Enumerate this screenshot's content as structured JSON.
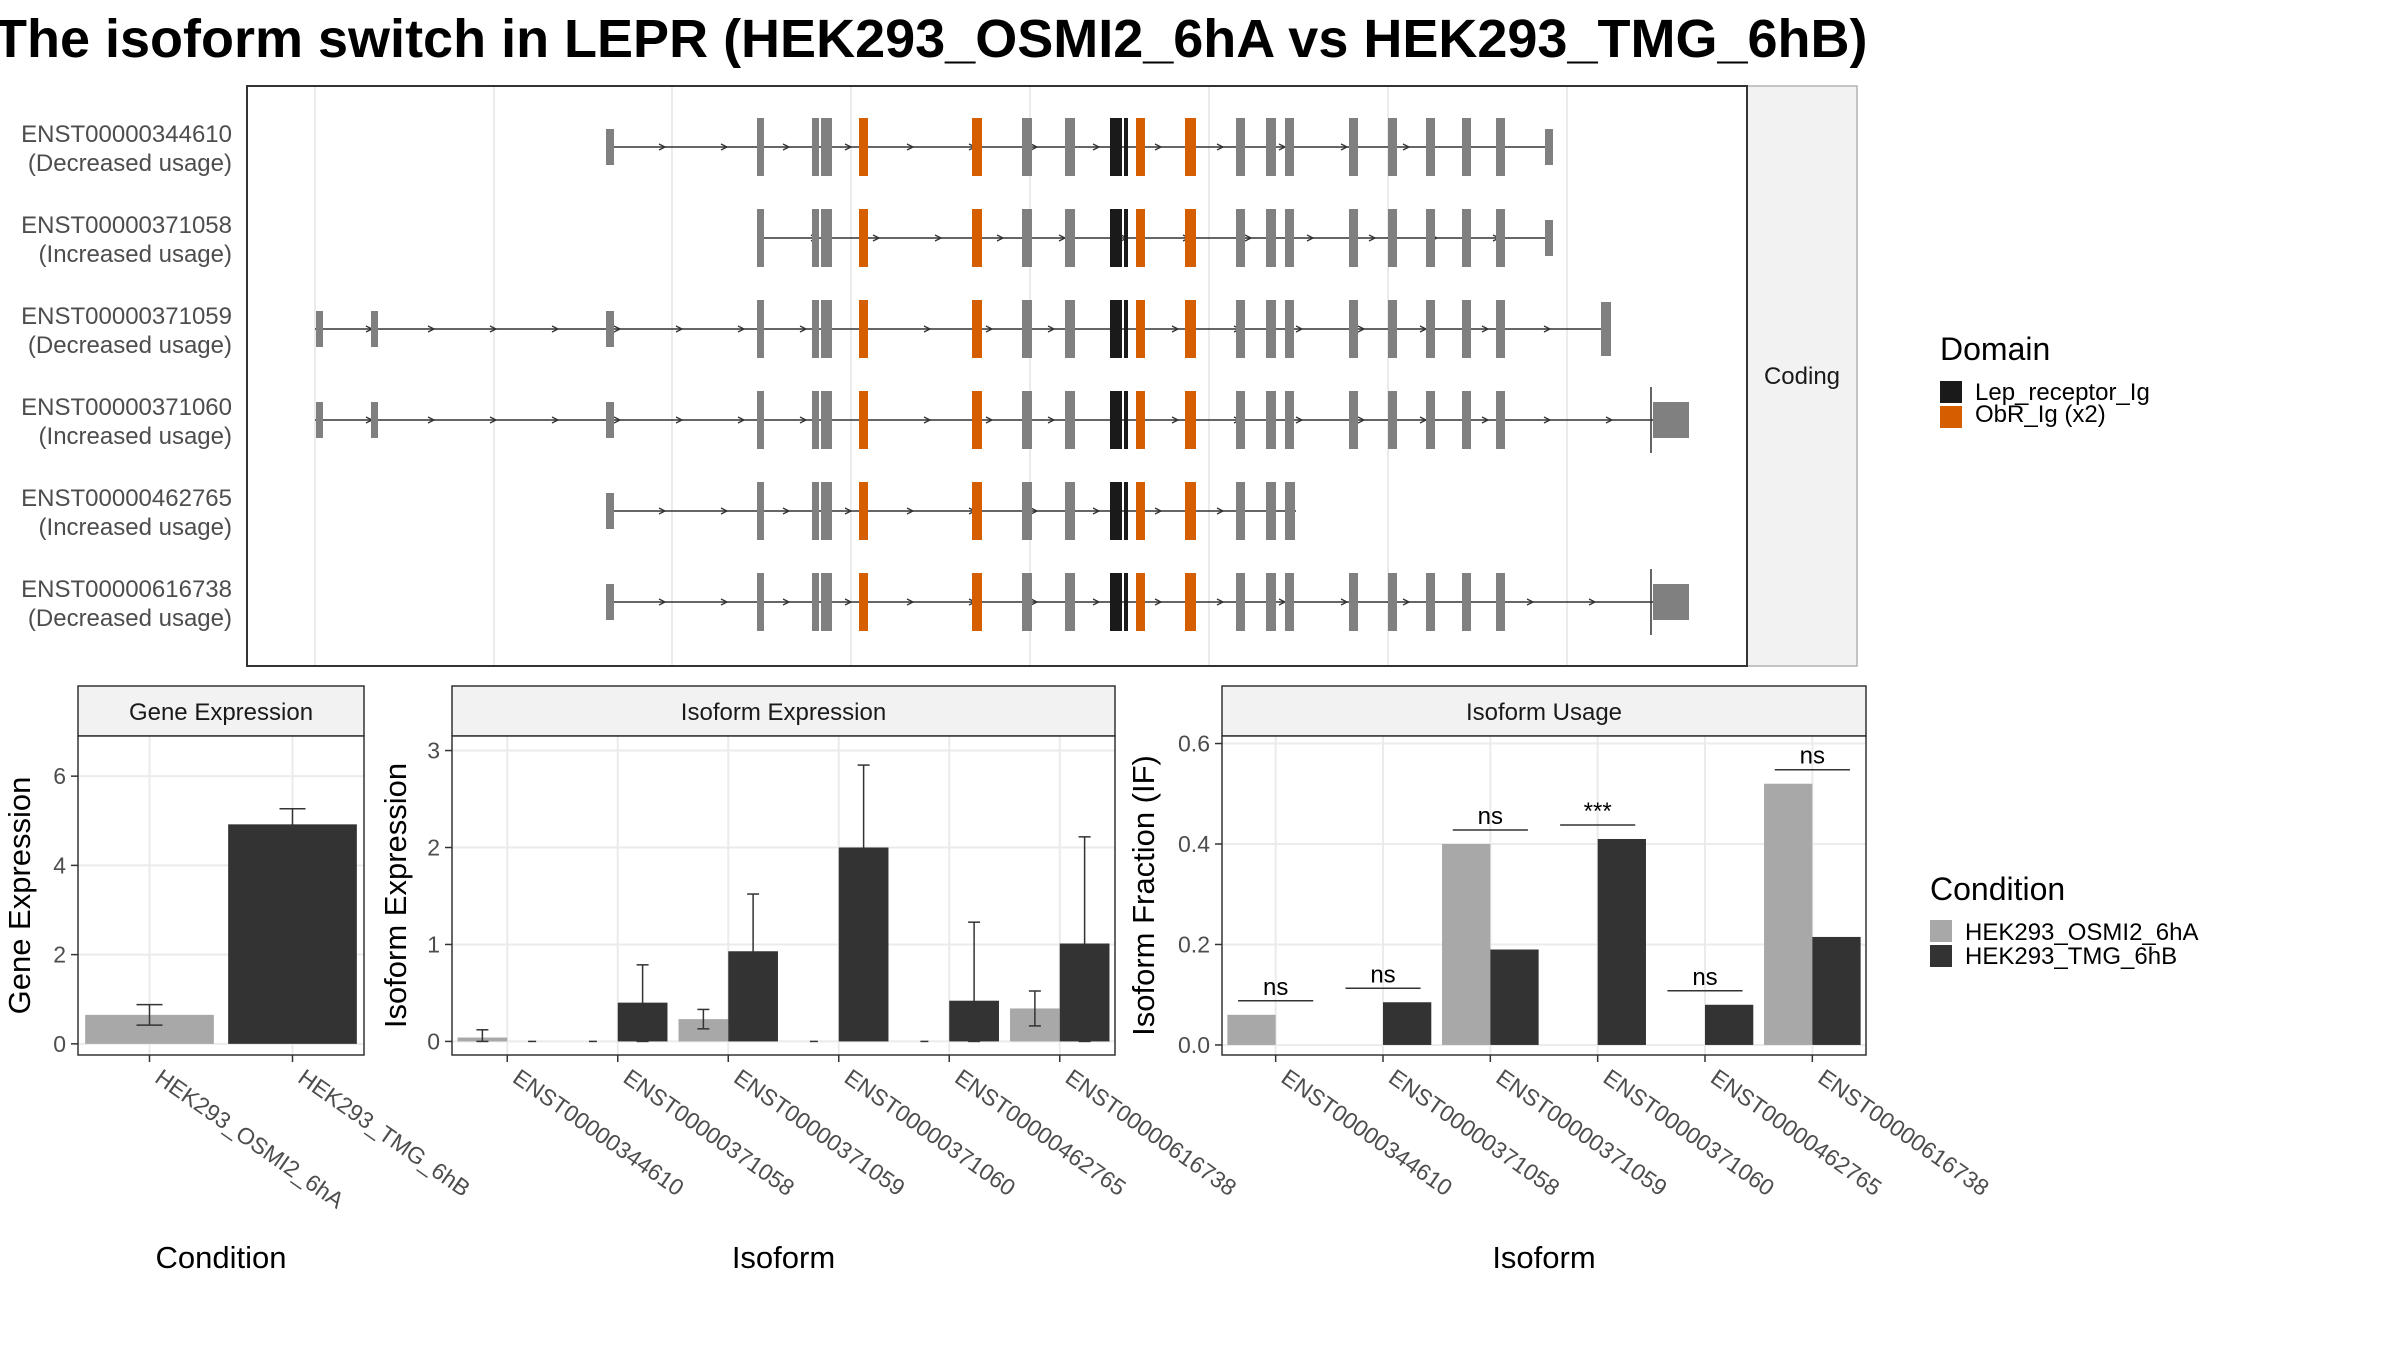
{
  "title": "The isoform switch in LEPR (HEK293_OSMI2_6hA vs HEK293_TMG_6hB)",
  "colors": {
    "exon": "#808080",
    "lep_receptor_ig": "#1a1a1a",
    "obr_ig": "#d55e00",
    "condition_a": "#a8a8a8",
    "condition_b": "#333333",
    "grid": "#ebebeb",
    "strip": "#f2f2f2"
  },
  "structure_panel": {
    "strip_label": "Coding",
    "transcripts": [
      {
        "id": "ENST00000344610",
        "usage": "(Decreased usage)",
        "start": 8,
        "end": 96,
        "utr3": false
      },
      {
        "id": "ENST00000371058",
        "usage": "(Increased usage)",
        "start": 12,
        "end": 96,
        "utr3": false
      },
      {
        "id": "ENST00000371059",
        "usage": "(Decreased usage)",
        "start": 0,
        "end": 99,
        "utr3": false
      },
      {
        "id": "ENST00000371060",
        "usage": "(Increased usage)",
        "start": 0,
        "end": 102,
        "utr3": true
      },
      {
        "id": "ENST00000462765",
        "usage": "(Increased usage)",
        "start": 8,
        "end": 76,
        "utr3": false
      },
      {
        "id": "ENST00000616738",
        "usage": "(Decreased usage)",
        "start": 8,
        "end": 102,
        "utr3": true
      }
    ]
  },
  "domain_legend": {
    "title": "Domain",
    "items": [
      {
        "label": "Lep_receptor_Ig",
        "color": "#1a1a1a"
      },
      {
        "label": "ObR_Ig (x2)",
        "color": "#d55e00"
      }
    ]
  },
  "condition_legend": {
    "title": "Condition",
    "items": [
      {
        "label": "HEK293_OSMI2_6hA",
        "color": "#a8a8a8"
      },
      {
        "label": "HEK293_TMG_6hB",
        "color": "#333333"
      }
    ]
  },
  "chart_data": [
    {
      "type": "bar",
      "strip_title": "Gene Expression",
      "xlabel": "Condition",
      "ylabel": "Gene Expression",
      "ylim": [
        -0.25,
        6.9
      ],
      "yticks": [
        0,
        2,
        4,
        6
      ],
      "categories": [
        "HEK293_OSMI2_6hA",
        "HEK293_TMG_6hB"
      ],
      "values": [
        0.65,
        4.92
      ],
      "err_low": [
        0.42,
        4.58
      ],
      "err_high": [
        0.88,
        5.27
      ]
    },
    {
      "type": "bar",
      "strip_title": "Isoform Expression",
      "xlabel": "Isoform",
      "ylabel": "Isoform Expression",
      "ylim": [
        -0.14,
        3.15
      ],
      "yticks": [
        0,
        1,
        2,
        3
      ],
      "categories": [
        "ENST00000344610",
        "ENST00000371058",
        "ENST00000371059",
        "ENST00000371060",
        "ENST00000462765",
        "ENST00000616738"
      ],
      "series": [
        {
          "name": "HEK293_OSMI2_6hA",
          "values": [
            0.04,
            0.0,
            0.23,
            0.0,
            0.0,
            0.34
          ],
          "err_low": [
            0.0,
            0.0,
            0.13,
            0.0,
            0.0,
            0.16
          ],
          "err_high": [
            0.12,
            0.0,
            0.33,
            0.0,
            0.0,
            0.52
          ]
        },
        {
          "name": "HEK293_TMG_6hB",
          "values": [
            0.0,
            0.4,
            0.93,
            2.0,
            0.42,
            1.01
          ],
          "err_low": [
            0.0,
            0.0,
            0.36,
            1.16,
            0.0,
            0.0
          ],
          "err_high": [
            0.0,
            0.79,
            1.52,
            2.85,
            1.23,
            2.11
          ]
        }
      ]
    },
    {
      "type": "bar",
      "strip_title": "Isoform Usage",
      "xlabel": "Isoform",
      "ylabel": "Isoform Fraction (IF)",
      "ylim": [
        -0.02,
        0.615
      ],
      "yticks": [
        0.0,
        0.2,
        0.4,
        0.6
      ],
      "ytick_labels": [
        "0.0",
        "0.2",
        "0.4",
        "0.6"
      ],
      "categories": [
        "ENST00000344610",
        "ENST00000371058",
        "ENST00000371059",
        "ENST00000371060",
        "ENST00000462765",
        "ENST00000616738"
      ],
      "series": [
        {
          "name": "HEK293_OSMI2_6hA",
          "values": [
            0.06,
            0.0,
            0.4,
            0.0,
            0.0,
            0.52
          ]
        },
        {
          "name": "HEK293_TMG_6hB",
          "values": [
            0.0,
            0.085,
            0.19,
            0.41,
            0.08,
            0.215
          ]
        }
      ],
      "significance": [
        "ns",
        "ns",
        "ns",
        "***",
        "ns",
        "ns"
      ]
    }
  ]
}
